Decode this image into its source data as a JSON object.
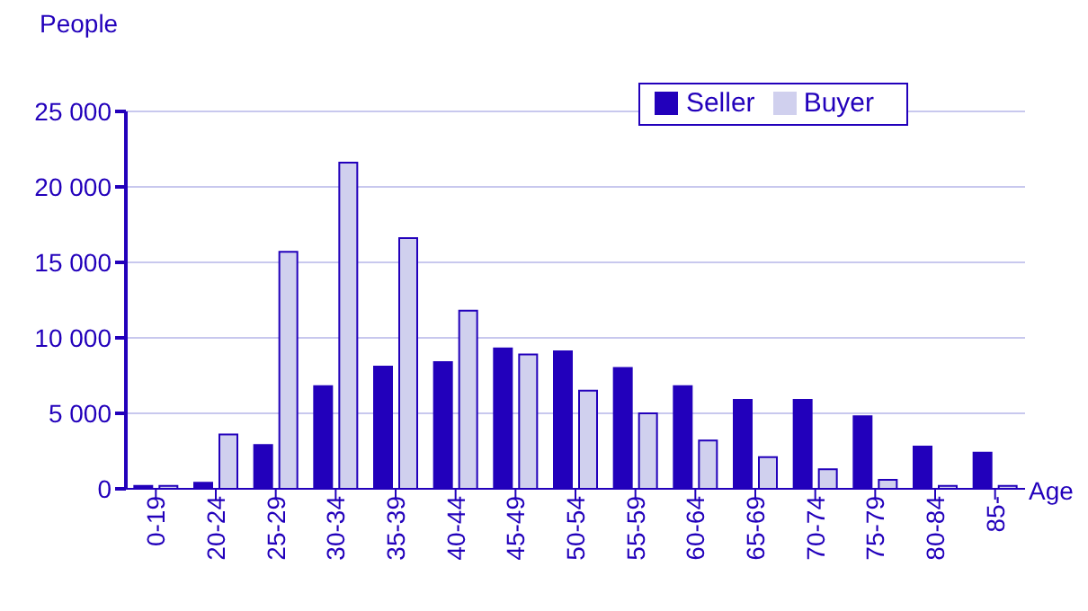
{
  "chart_data": {
    "type": "bar",
    "xlabel": "Age",
    "ylabel": "People",
    "categories": [
      "0-19",
      "20-24",
      "25-29",
      "30-34",
      "35-39",
      "40-44",
      "45-49",
      "50-54",
      "55-59",
      "60-64",
      "65-69",
      "70-74",
      "75-79",
      "80-84",
      "85-"
    ],
    "series": [
      {
        "name": "Seller",
        "color": "#2200bb",
        "values": [
          200,
          400,
          2900,
          6800,
          8100,
          8400,
          9300,
          9100,
          8000,
          6800,
          5900,
          5900,
          4800,
          2800,
          2400
        ]
      },
      {
        "name": "Buyer",
        "color": "#d0d0ee",
        "values": [
          200,
          3600,
          15700,
          21600,
          16600,
          11800,
          8900,
          6500,
          5000,
          3200,
          2100,
          1300,
          600,
          200,
          200
        ]
      }
    ],
    "ylim": [
      0,
      25000
    ],
    "yticks": [
      0,
      5000,
      10000,
      15000,
      20000,
      25000
    ],
    "grid": "y",
    "legend": "top right"
  }
}
